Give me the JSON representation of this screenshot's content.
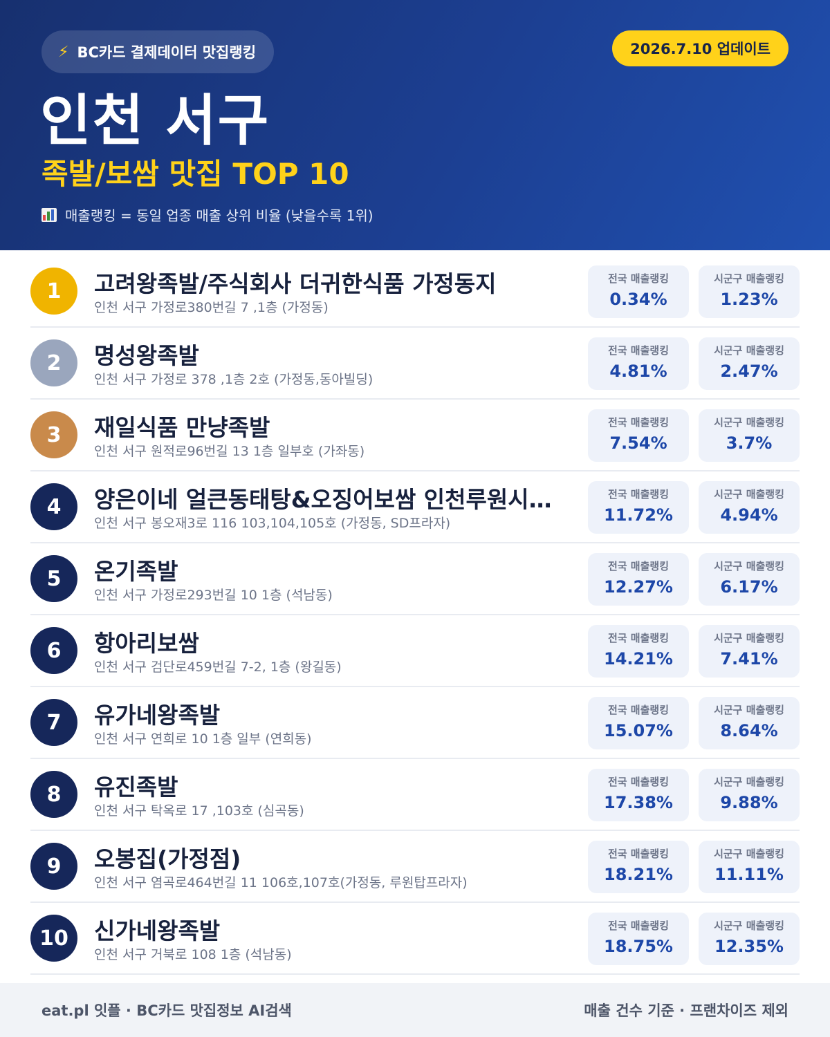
{
  "header": {
    "brand_icon": "lightning-icon",
    "brand_label": "BC카드 결제데이터 맛집랭킹",
    "update_label": "2026.7.10 업데이트",
    "region": "인천 서구",
    "category_title": "족발/보쌈 맛집 TOP 10",
    "note_icon": "bar-chart-icon",
    "note": "매출랭킹 = 동일 업종 매출 상위 비율 (낮을수록 1위)"
  },
  "labels": {
    "national": "전국 매출랭킹",
    "local": "시군구 매출랭킹"
  },
  "colors": {
    "gold": "#f0b400",
    "silver": "#9aa6bd",
    "bronze": "#c98a4b",
    "navy": "#16275a",
    "accent": "#ffd21a",
    "value": "#1d47a8"
  },
  "restaurants": [
    {
      "rank": "1",
      "name": "고려왕족발/주식회사 더귀한식품 가정동지",
      "address": "인천 서구 가정로380번길 7 ,1층 (가정동)",
      "national": "0.34%",
      "local": "1.23%"
    },
    {
      "rank": "2",
      "name": "명성왕족발",
      "address": "인천 서구 가정로 378 ,1층 2호 (가정동,동아빌딩)",
      "national": "4.81%",
      "local": "2.47%"
    },
    {
      "rank": "3",
      "name": "재일식품 만냥족발",
      "address": "인천 서구 원적로96번길 13 1층 일부호 (가좌동)",
      "national": "7.54%",
      "local": "3.7%"
    },
    {
      "rank": "4",
      "name": "양은이네 얼큰동태탕&오징어보쌈 인천루원시…",
      "address": "인천 서구 봉오재3로 116 103,104,105호 (가정동, SD프라자)",
      "national": "11.72%",
      "local": "4.94%"
    },
    {
      "rank": "5",
      "name": "온기족발",
      "address": "인천 서구 가정로293번길 10 1층 (석남동)",
      "national": "12.27%",
      "local": "6.17%"
    },
    {
      "rank": "6",
      "name": "항아리보쌈",
      "address": "인천 서구 검단로459번길 7-2, 1층 (왕길동)",
      "national": "14.21%",
      "local": "7.41%"
    },
    {
      "rank": "7",
      "name": "유가네왕족발",
      "address": "인천 서구 연희로 10 1층 일부 (연희동)",
      "national": "15.07%",
      "local": "8.64%"
    },
    {
      "rank": "8",
      "name": "유진족발",
      "address": "인천 서구 탁옥로 17 ,103호 (심곡동)",
      "national": "17.38%",
      "local": "9.88%"
    },
    {
      "rank": "9",
      "name": "오봉집(가정점)",
      "address": "인천 서구 염곡로464번길 11 106호,107호(가정동, 루원탑프라자)",
      "national": "18.21%",
      "local": "11.11%"
    },
    {
      "rank": "10",
      "name": "신가네왕족발",
      "address": "인천 서구 거북로 108 1층 (석남동)",
      "national": "18.75%",
      "local": "12.35%"
    }
  ],
  "footer": {
    "left": "eat.pl 잇플 · BC카드 맛집정보 AI검색",
    "right": "매출 건수 기준 · 프랜차이즈 제외"
  }
}
